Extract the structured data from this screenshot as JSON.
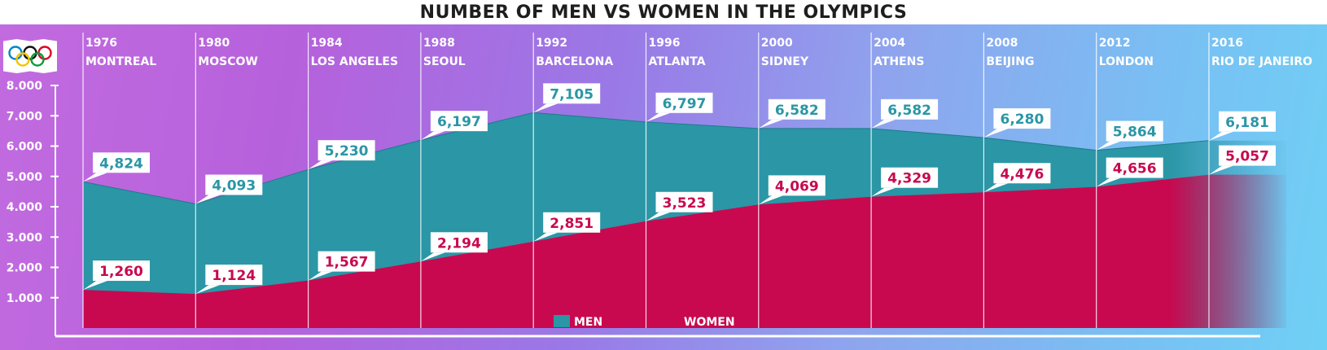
{
  "title": "NUMBER OF MEN VS WOMEN IN THE OLYMPICS",
  "colors": {
    "men": "#2a96a6",
    "women": "#c8094f",
    "ring_blue": "#0085c7",
    "ring_black": "#111111",
    "ring_red": "#df0024",
    "ring_yellow": "#f4c300",
    "ring_green": "#009f3d"
  },
  "chart_data": {
    "type": "area",
    "title": "NUMBER OF MEN VS WOMEN IN THE OLYMPICS",
    "years": [
      "1976",
      "1980",
      "1984",
      "1988",
      "1992",
      "1996",
      "2000",
      "2004",
      "2008",
      "2012",
      "2016"
    ],
    "categories": [
      "MONTREAL",
      "MOSCOW",
      "LOS ANGELES",
      "SEOUL",
      "BARCELONA",
      "ATLANTA",
      "SIDNEY",
      "ATHENS",
      "BEIJING",
      "LONDON",
      "RIO DE JANEIRO"
    ],
    "series": [
      {
        "name": "MEN",
        "values": [
          4824,
          4093,
          5230,
          6197,
          7105,
          6797,
          6582,
          6582,
          6280,
          5864,
          6181
        ],
        "labels": [
          "4,824",
          "4,093",
          "5,230",
          "6,197",
          "7,105",
          "6,797",
          "6,582",
          "6,582",
          "6,280",
          "5,864",
          "6,181"
        ]
      },
      {
        "name": "WOMEN",
        "values": [
          1260,
          1124,
          1567,
          2194,
          2851,
          3523,
          4069,
          4329,
          4476,
          4656,
          5057
        ],
        "labels": [
          "1,260",
          "1,124",
          "1,567",
          "2,194",
          "2,851",
          "3,523",
          "4,069",
          "4,329",
          "4,476",
          "4,656",
          "5,057"
        ]
      }
    ],
    "yticks": [
      1000,
      2000,
      3000,
      4000,
      5000,
      6000,
      7000,
      8000
    ],
    "ytick_labels": [
      "1.000",
      "2.000",
      "3.000",
      "4.000",
      "5.000",
      "6.000",
      "7.000",
      "8.000"
    ],
    "ylim": [
      0,
      8000
    ],
    "legend": [
      "MEN",
      "WOMEN"
    ],
    "legend_position": "bottom-center",
    "xlabel": "",
    "ylabel": ""
  }
}
